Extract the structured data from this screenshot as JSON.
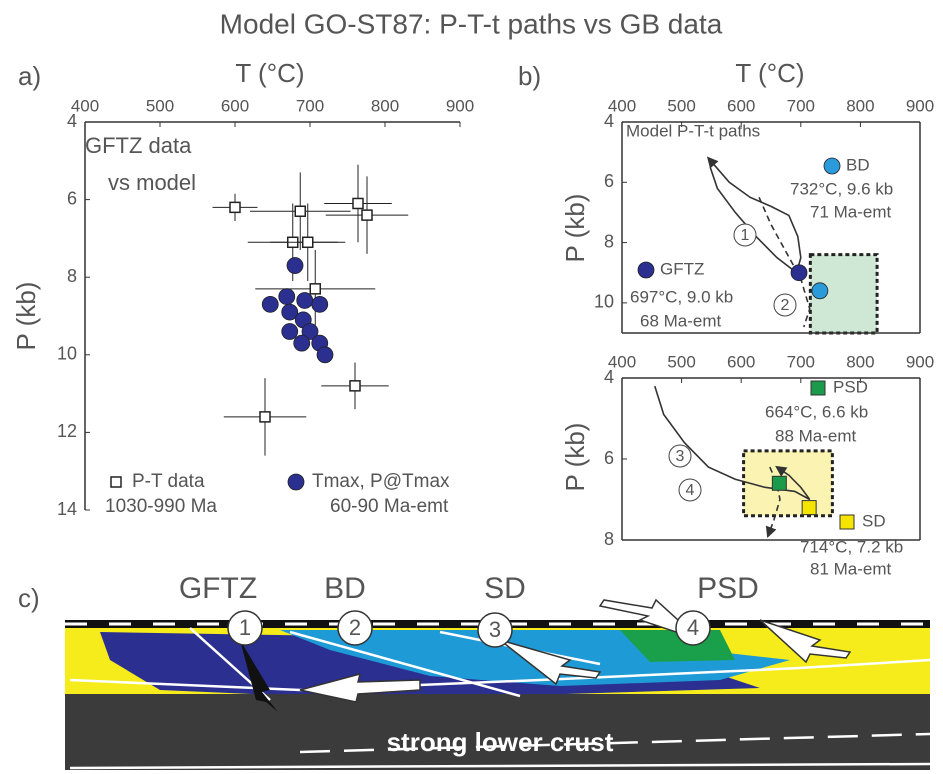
{
  "title": "Model GO-ST87: P-T-t paths vs GB data",
  "chart_data": [
    {
      "type": "scatter",
      "panel_label": "a)",
      "x_label": "T (°C)",
      "y_label": "P (kb)",
      "xlim": [
        400,
        900
      ],
      "xticks": [
        400,
        500,
        600,
        700,
        800,
        900
      ],
      "ylim": [
        4,
        14
      ],
      "yticks": [
        4,
        6,
        8,
        10,
        12,
        14
      ],
      "y_inverted": true,
      "x_axis_position": "top",
      "annotations": [
        "GFTZ data",
        "vs model"
      ],
      "series": [
        {
          "name": "P-T data",
          "note": [
            "1030-990 Ma"
          ],
          "kind": "scatter",
          "marker": "square-open",
          "color": "#222222",
          "x": [
            600,
            687,
            764,
            776,
            677,
            697,
            707,
            760,
            640
          ],
          "y": [
            6.2,
            6.3,
            6.1,
            6.4,
            7.1,
            7.1,
            8.3,
            10.8,
            11.6
          ],
          "xerr": [
            30,
            67,
            45,
            55,
            60,
            50,
            80,
            45,
            55
          ],
          "yerr": [
            0.35,
            1,
            1,
            1,
            1,
            1,
            1,
            0.6,
            1
          ]
        },
        {
          "name": "Tmax, P@Tmax",
          "note": [
            "60-90 Ma-emt"
          ],
          "kind": "scatter",
          "marker": "circle",
          "color": "#2b2f8f",
          "x": [
            680,
            647,
            669,
            693,
            713,
            673,
            691,
            673,
            700,
            689,
            713,
            720
          ],
          "y": [
            7.7,
            8.7,
            8.5,
            8.6,
            8.7,
            8.9,
            9.1,
            9.4,
            9.4,
            9.7,
            9.7,
            10.0
          ]
        }
      ]
    },
    {
      "type": "line",
      "panel_label": "b)",
      "x_label": "T (°C)",
      "y_label": "P (kb)",
      "xlim": [
        400,
        900
      ],
      "xticks": [
        400,
        500,
        600,
        700,
        800,
        900
      ],
      "ylim": [
        4,
        11
      ],
      "yticks": [
        4,
        6,
        8,
        10
      ],
      "y_inverted": true,
      "x_axis_position": "top",
      "annotations": [
        "Model P-T-t paths"
      ],
      "regions": [
        {
          "color": "#cfe8d5",
          "x": [
            716,
            828
          ],
          "y": [
            8.4,
            11
          ]
        }
      ],
      "series": [
        {
          "name": "1",
          "kind": "line",
          "dashed": false,
          "arrow": true,
          "color": "#333333",
          "x": [
            548,
            560,
            590,
            625,
            660,
            693,
            700,
            695,
            680,
            650,
            615,
            580,
            545
          ],
          "y": [
            5.5,
            6.2,
            7.0,
            7.8,
            8.5,
            9.0,
            8.5,
            7.8,
            7.1,
            6.8,
            6.5,
            6.0,
            5.2
          ]
        },
        {
          "name": "2",
          "kind": "line",
          "dashed": true,
          "arrow": false,
          "color": "#333333",
          "x": [
            630,
            650,
            675,
            700,
            715,
            705
          ],
          "y": [
            6.5,
            7.4,
            8.3,
            9.2,
            10.2,
            10.8
          ]
        },
        {
          "name": "GFTZ",
          "note": [
            "697°C, 9.0 kb",
            "68 Ma-emt"
          ],
          "kind": "point",
          "marker": "circle",
          "color": "#2b2f8f",
          "x": [
            697
          ],
          "y": [
            9.0
          ]
        },
        {
          "name": "BD",
          "note": [
            "732°C, 9.6 kb",
            "71 Ma-emt"
          ],
          "kind": "point",
          "marker": "circle",
          "color": "#2a9ad8",
          "x": [
            732
          ],
          "y": [
            9.6
          ]
        }
      ]
    },
    {
      "type": "line",
      "y_label": "P (kb)",
      "xlim": [
        400,
        900
      ],
      "xticks": [
        400,
        500,
        600,
        700,
        800,
        900
      ],
      "ylim": [
        4,
        8
      ],
      "yticks": [
        4,
        6,
        8
      ],
      "y_inverted": true,
      "x_axis_position": "top",
      "regions": [
        {
          "color": "#fbf3b2",
          "x": [
            604,
            753
          ],
          "y": [
            5.8,
            7.4
          ]
        }
      ],
      "series": [
        {
          "name": "3",
          "kind": "line",
          "dashed": false,
          "arrow": true,
          "color": "#333333",
          "x": [
            455,
            470,
            505,
            545,
            590,
            640,
            690,
            715,
            700,
            680,
            660
          ],
          "y": [
            4.2,
            4.9,
            5.6,
            6.2,
            6.5,
            6.7,
            6.8,
            7.0,
            6.7,
            6.4,
            6.2
          ]
        },
        {
          "name": "4",
          "kind": "line",
          "dashed": true,
          "arrow": true,
          "color": "#333333",
          "x": [
            648,
            660,
            665,
            655,
            645
          ],
          "y": [
            6.2,
            6.6,
            7.0,
            7.5,
            7.9
          ]
        },
        {
          "name": "PSD",
          "note": [
            "664°C, 6.6 kb",
            "88 Ma-emt"
          ],
          "kind": "point",
          "marker": "square",
          "color": "#1a9a4a",
          "x": [
            664
          ],
          "y": [
            6.6
          ]
        },
        {
          "name": "SD",
          "note": [
            "714°C, 7.2 kb",
            "81 Ma-emt"
          ],
          "kind": "point",
          "marker": "square",
          "color": "#f5e400",
          "x": [
            714
          ],
          "y": [
            7.2
          ]
        }
      ]
    }
  ],
  "cross_section": {
    "panel_label": "c)",
    "zones": [
      "GFTZ",
      "BD",
      "SD",
      "PSD"
    ],
    "paths": [
      "1",
      "2",
      "3",
      "4"
    ],
    "crust_label": "strong lower crust"
  }
}
